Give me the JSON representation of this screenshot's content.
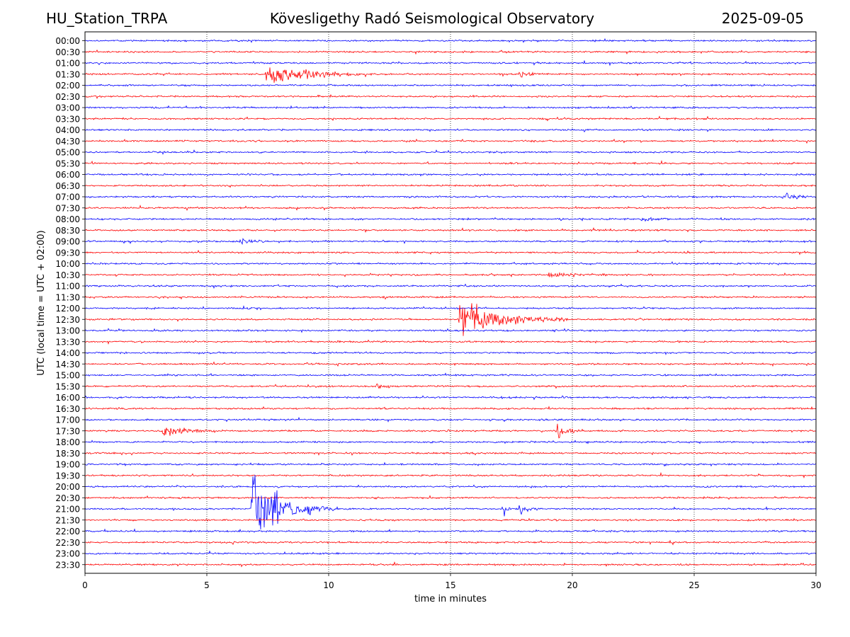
{
  "header": {
    "station": "HU_Station_TRPA",
    "title": "Kövesligethy Radó Seismological Observatory",
    "date": "2025-09-05"
  },
  "chart_data": {
    "type": "line",
    "title": "Kövesligethy Radó Seismological Observatory",
    "xlabel": "time in minutes",
    "ylabel": "UTC (local time = UTC + 02:00)",
    "xlim": [
      0,
      30
    ],
    "x_ticks": [
      0,
      5,
      10,
      15,
      20,
      25,
      30
    ],
    "grid": "vertical dotted at x ticks",
    "colors": {
      "odd_rows": "#0000ff",
      "even_rows": "#ff0000"
    },
    "rows": [
      "00:00",
      "00:30",
      "01:00",
      "01:30",
      "02:00",
      "02:30",
      "03:00",
      "03:30",
      "04:00",
      "04:30",
      "05:00",
      "05:30",
      "06:00",
      "06:30",
      "07:00",
      "07:30",
      "08:00",
      "08:30",
      "09:00",
      "09:30",
      "10:00",
      "10:30",
      "11:00",
      "11:30",
      "12:00",
      "12:30",
      "13:00",
      "13:30",
      "14:00",
      "14:30",
      "15:00",
      "15:30",
      "16:00",
      "16:30",
      "17:00",
      "17:30",
      "18:00",
      "18:30",
      "19:00",
      "19:30",
      "20:00",
      "20:30",
      "21:00",
      "21:30",
      "22:00",
      "22:30",
      "23:00",
      "23:30"
    ],
    "events": [
      {
        "row": "01:30",
        "start": 7.4,
        "duration": 4.5,
        "peak": 0.9
      },
      {
        "row": "01:30",
        "start": 17.8,
        "duration": 1.2,
        "peak": 0.35
      },
      {
        "row": "07:00",
        "start": 28.6,
        "duration": 1.4,
        "peak": 0.35
      },
      {
        "row": "08:00",
        "start": 22.8,
        "duration": 1.2,
        "peak": 0.25
      },
      {
        "row": "09:00",
        "start": 6.3,
        "duration": 1.5,
        "peak": 0.25
      },
      {
        "row": "10:30",
        "start": 16.6,
        "duration": 0.3,
        "peak": 0.4
      },
      {
        "row": "10:30",
        "start": 19.0,
        "duration": 2.5,
        "peak": 0.2
      },
      {
        "row": "12:30",
        "start": 15.3,
        "duration": 4.5,
        "peak": 1.5
      },
      {
        "row": "15:30",
        "start": 11.9,
        "duration": 1.2,
        "peak": 0.2
      },
      {
        "row": "17:30",
        "start": 3.1,
        "duration": 2.8,
        "peak": 0.45
      },
      {
        "row": "17:30",
        "start": 19.3,
        "duration": 1.0,
        "peak": 0.9
      },
      {
        "row": "21:00",
        "start": 6.8,
        "duration": 3.6,
        "peak": 3.0
      },
      {
        "row": "21:00",
        "start": 17.1,
        "duration": 0.5,
        "peak": 0.9
      },
      {
        "row": "21:00",
        "start": 17.8,
        "duration": 0.9,
        "peak": 0.6
      }
    ]
  }
}
